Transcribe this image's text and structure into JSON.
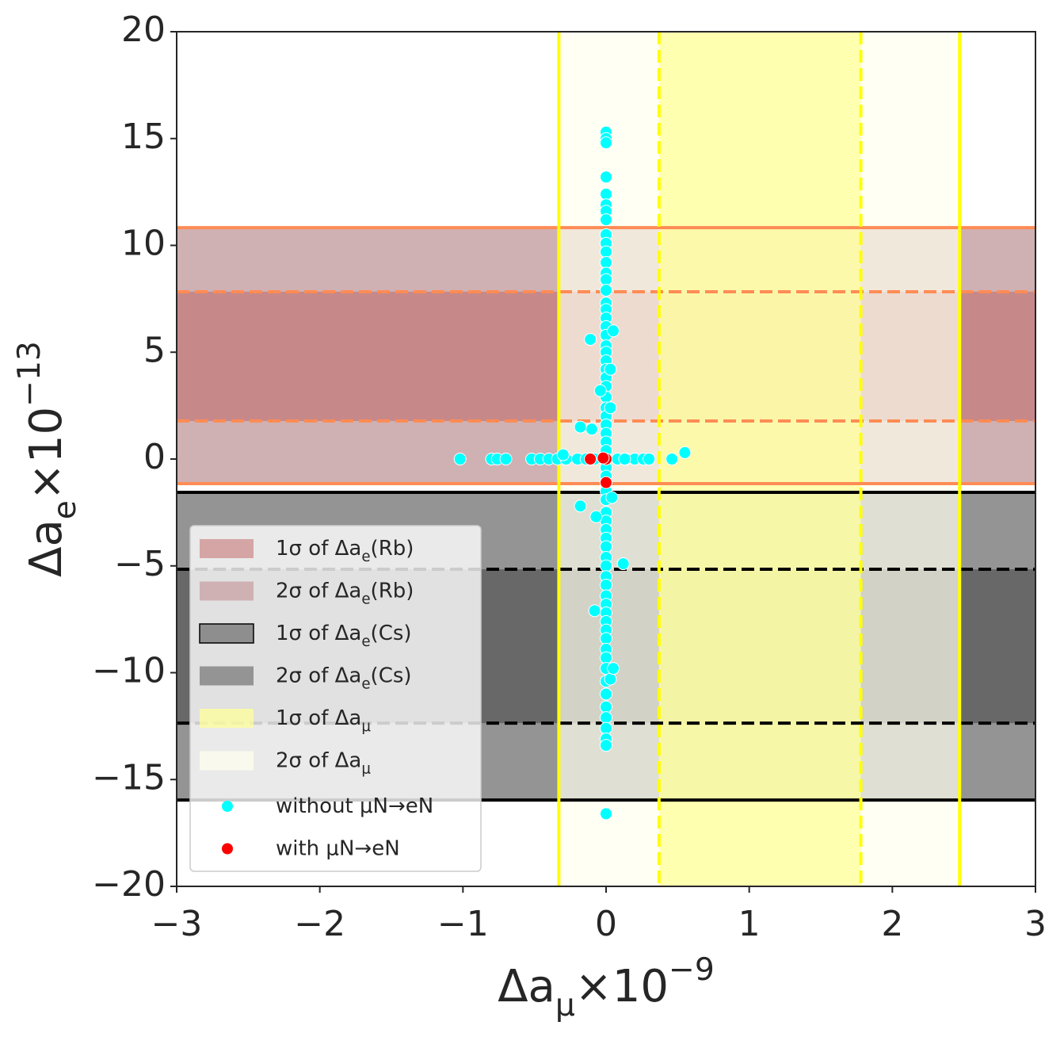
{
  "chart_data": {
    "type": "scatter",
    "xlabel": "Δa_{μ}×10^{−9}",
    "ylabel": "Δa_{e}×10^{−13}",
    "xlim": [
      -3,
      3
    ],
    "ylim": [
      -20,
      20
    ],
    "xticks": [
      {
        "value": -3,
        "label": "−3"
      },
      {
        "value": -2,
        "label": "−2"
      },
      {
        "value": -1,
        "label": "−1"
      },
      0,
      1,
      2,
      3
    ],
    "yticks": [
      {
        "value": -20,
        "label": "−20"
      },
      {
        "value": -15,
        "label": "−15"
      },
      {
        "value": -10,
        "label": "−10"
      },
      {
        "value": -5,
        "label": "−5"
      },
      0,
      5,
      10,
      15,
      20
    ],
    "legend": "lower left",
    "bands": [
      {
        "name": "1σ of Δa_{e}(Rb)",
        "axis": "y",
        "low": 1.78,
        "high": 7.83,
        "color": "#c06060",
        "line_color": "#ff8c55",
        "dashed": true
      },
      {
        "name": "2σ of Δa_{e}(Rb)",
        "axis": "y",
        "low": -1.15,
        "high": 10.83,
        "color": "#cfb1b3",
        "line_color": "#ff8c55",
        "dashed": false
      },
      {
        "name": "1σ of Δa_{e}(Cs)",
        "axis": "y",
        "low": -12.36,
        "high": -5.16,
        "color": "#3c3c3c",
        "line_color": "#000000",
        "dashed": true
      },
      {
        "name": "2σ of Δa_{e}(Cs)",
        "axis": "y",
        "low": -15.96,
        "high": -1.56,
        "color": "#949494",
        "line_color": "#000000",
        "dashed": false
      },
      {
        "name": "1σ of Δa_{μ}",
        "axis": "x",
        "low": 0.37,
        "high": 1.78,
        "color": "#ffff99",
        "line_color": "#ffff00",
        "dashed": true
      },
      {
        "name": "2σ of Δa_{μ}",
        "axis": "x",
        "low": -0.33,
        "high": 2.47,
        "color": "#ffffee",
        "line_color": "#ffff00",
        "dashed": false
      }
    ],
    "series": [
      {
        "name": "without μN→eN",
        "color": "#00ffff",
        "x": [
          0,
          0,
          0,
          0,
          0,
          0,
          0,
          0,
          0,
          0,
          0,
          0,
          0,
          0,
          0,
          0,
          0,
          0,
          0,
          0,
          0,
          0,
          0,
          0,
          0,
          0,
          0,
          0,
          0,
          0,
          0,
          0,
          0,
          0,
          0,
          0,
          0,
          0,
          0,
          0,
          0,
          0,
          0,
          0,
          0,
          0,
          0,
          0,
          0,
          0,
          0,
          0,
          0,
          0,
          0,
          0,
          0,
          0,
          0,
          0,
          0,
          0,
          0,
          -1.02,
          -0.8,
          -0.76,
          -0.7,
          -0.52,
          -0.46,
          -0.4,
          -0.34,
          -0.28,
          -0.2,
          -0.14,
          -0.08,
          0.08,
          0.14,
          0.2,
          0.26,
          0.3,
          0.46,
          0.55,
          -0.11,
          0.05,
          0.03,
          0.03,
          -0.04,
          -0.1,
          -0.18,
          -0.18,
          -0.07,
          -0.08,
          0.12,
          0.03,
          0.05,
          0.13,
          -0.3,
          0.04
        ],
        "values": [
          15.3,
          15.0,
          14.8,
          13.2,
          12.4,
          11.9,
          11.6,
          11.2,
          10.5,
          10.1,
          9.7,
          9.2,
          8.7,
          8.4,
          7.9,
          7.3,
          7.0,
          6.6,
          6.2,
          5.8,
          5.3,
          5.0,
          4.6,
          4.2,
          3.8,
          3.4,
          2.9,
          2.4,
          2.0,
          1.6,
          1.2,
          0.8,
          0.4,
          -0.4,
          -0.8,
          -1.5,
          -1.9,
          -2.5,
          -2.9,
          -3.3,
          -3.7,
          -4.1,
          -4.6,
          -5.0,
          -5.5,
          -5.9,
          -6.4,
          -6.8,
          -7.2,
          -7.6,
          -8.0,
          -8.4,
          -8.9,
          -9.3,
          -9.8,
          -10.4,
          -11.0,
          -11.6,
          -12.1,
          -12.6,
          -13.1,
          -13.4,
          -16.6,
          0,
          0,
          0,
          0,
          0,
          0,
          0,
          0,
          0,
          0,
          0,
          0,
          0,
          0,
          0,
          0,
          0,
          0,
          0.3,
          5.6,
          6.0,
          4.2,
          2.4,
          3.2,
          1.4,
          1.5,
          -2.2,
          -2.7,
          -7.1,
          -4.9,
          -10.3,
          -9.8,
          0,
          0.2,
          -1.8
        ]
      },
      {
        "name": "with μN→eN",
        "color": "#ff0000",
        "x": [
          -0.11,
          0,
          0,
          -0.02
        ],
        "values": [
          0,
          0,
          -1.1,
          0.05
        ]
      }
    ]
  }
}
